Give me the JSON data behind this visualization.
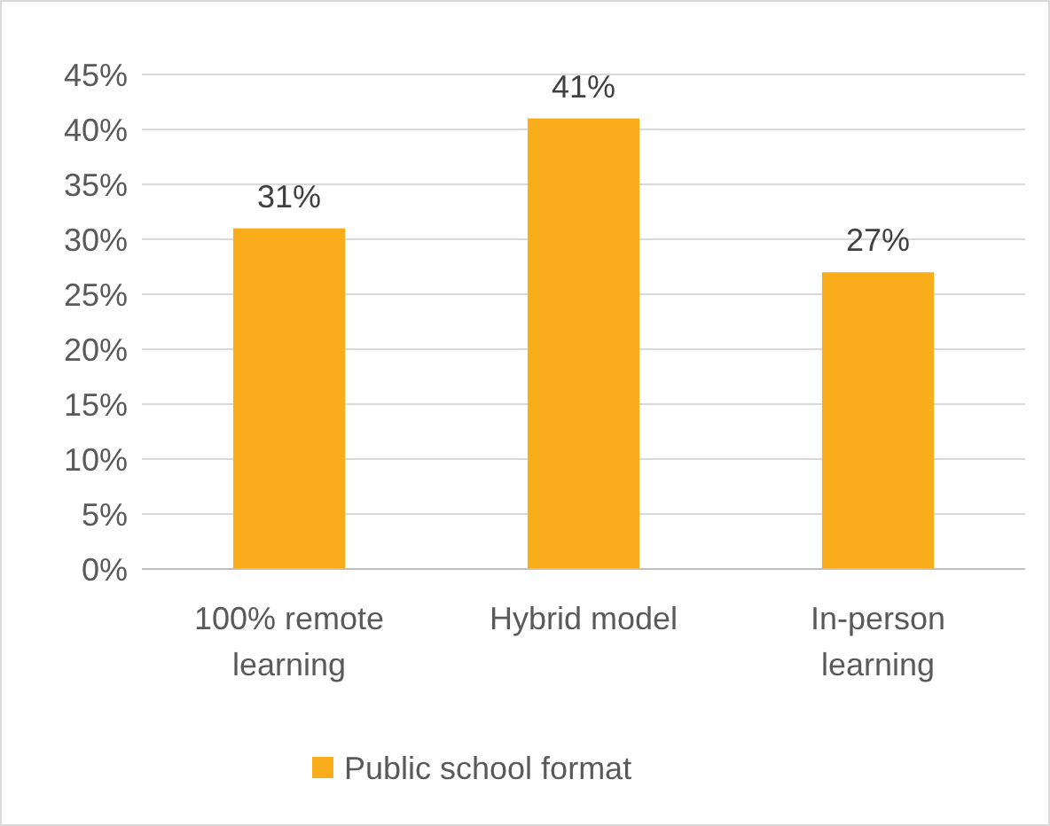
{
  "chart_data": {
    "type": "bar",
    "categories": [
      "100% remote learning",
      "Hybrid model",
      "In-person learning"
    ],
    "series": [
      {
        "name": "Public school format",
        "color": "#f9ad1a",
        "values": [
          31,
          41,
          27
        ]
      }
    ],
    "ylim": [
      0,
      45
    ],
    "yticks": [
      {
        "value": 0,
        "label": "0%"
      },
      {
        "value": 5,
        "label": "5%"
      },
      {
        "value": 10,
        "label": "10%"
      },
      {
        "value": 15,
        "label": "15%"
      },
      {
        "value": 20,
        "label": "20%"
      },
      {
        "value": 25,
        "label": "25%"
      },
      {
        "value": 30,
        "label": "30%"
      },
      {
        "value": 35,
        "label": "35%"
      },
      {
        "value": 40,
        "label": "40%"
      },
      {
        "value": 45,
        "label": "45%"
      }
    ],
    "value_labels": [
      [
        "31%",
        "41%",
        "27%"
      ]
    ],
    "grid": "y",
    "legend": "bottom"
  }
}
